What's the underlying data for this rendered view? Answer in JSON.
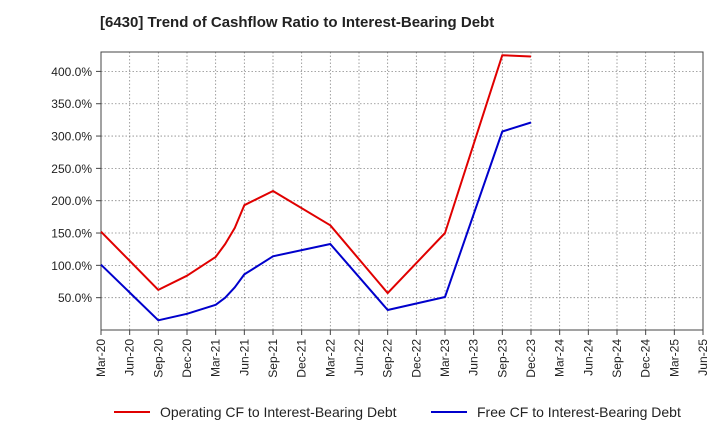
{
  "title": "[6430]  Trend of Cashflow Ratio to Interest-Bearing Debt",
  "chart_data": {
    "type": "line",
    "title": "[6430]  Trend of Cashflow Ratio to Interest-Bearing Debt",
    "xlabel": "",
    "ylabel": "",
    "x_tick_labels": [
      "Mar-20",
      "Jun-20",
      "Sep-20",
      "Dec-20",
      "Mar-21",
      "Jun-21",
      "Sep-21",
      "Dec-21",
      "Mar-22",
      "Jun-22",
      "Sep-22",
      "Dec-22",
      "Mar-23",
      "Jun-23",
      "Sep-23",
      "Dec-23",
      "Mar-24",
      "Jun-24",
      "Sep-24",
      "Dec-24",
      "Mar-25",
      "Jun-25"
    ],
    "y_tick_values": [
      50,
      100,
      150,
      200,
      250,
      300,
      350,
      400
    ],
    "y_tick_labels": [
      "50.0%",
      "100.0%",
      "150.0%",
      "200.0%",
      "250.0%",
      "300.0%",
      "350.0%",
      "400.0%"
    ],
    "ylim": [
      0,
      430
    ],
    "grid": true,
    "legend_position": "bottom",
    "series": [
      {
        "name": "Operating CF to Interest-Bearing Debt",
        "color": "#e00000",
        "points": [
          [
            "Mar-20",
            152
          ],
          [
            "Sep-20",
            62
          ],
          [
            "Dec-20",
            84
          ],
          [
            "Mar-21",
            113
          ],
          [
            "Apr-21",
            133
          ],
          [
            "May-21",
            158
          ],
          [
            "Jun-21",
            193
          ],
          [
            "Sep-21",
            215
          ],
          [
            "Mar-22",
            162
          ],
          [
            "Sep-22",
            57
          ],
          [
            "Mar-23",
            150
          ],
          [
            "Sep-23",
            425
          ],
          [
            "Dec-23",
            423
          ]
        ]
      },
      {
        "name": "Free CF to Interest-Bearing Debt",
        "color": "#0000cc",
        "points": [
          [
            "Mar-20",
            101
          ],
          [
            "Sep-20",
            15
          ],
          [
            "Dec-20",
            25
          ],
          [
            "Mar-21",
            39
          ],
          [
            "Apr-21",
            50
          ],
          [
            "May-21",
            66
          ],
          [
            "Jun-21",
            86
          ],
          [
            "Sep-21",
            114
          ],
          [
            "Mar-22",
            133
          ],
          [
            "Sep-22",
            31
          ],
          [
            "Mar-23",
            51
          ],
          [
            "Sep-23",
            307
          ],
          [
            "Dec-23",
            321
          ]
        ]
      }
    ]
  }
}
